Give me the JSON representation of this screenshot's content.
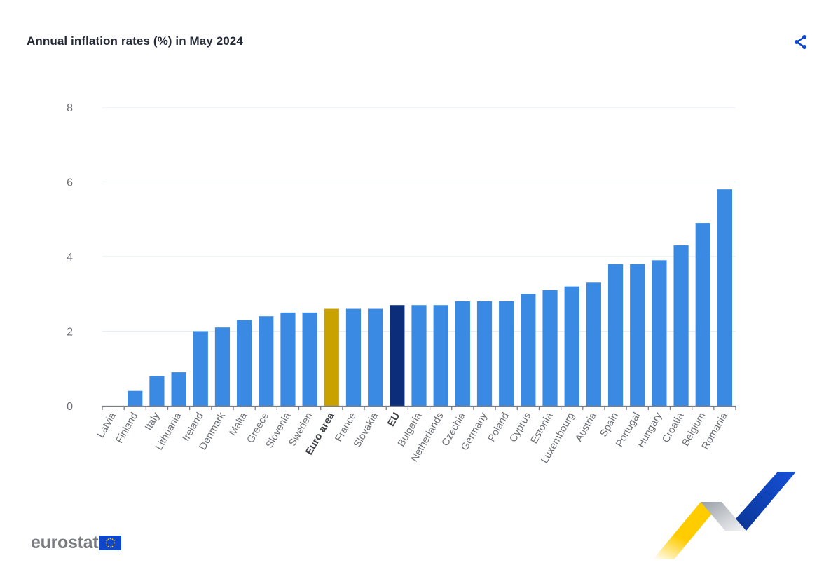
{
  "header": {
    "title": "Annual inflation rates (%) in May 2024",
    "share_icon": "share-icon"
  },
  "footer": {
    "logo_text": "eurostat",
    "flag_icon": "eu-flag-icon",
    "brand_graphic": "eurostat-ribbon-graphic"
  },
  "colors": {
    "bar": "#3a8ae3",
    "euro_area": "#c9a200",
    "eu": "#0b2d7a",
    "grid": "#e8edf5",
    "axis": "#7a7f87",
    "label": "#6b6f76",
    "share": "#0e47cb"
  },
  "chart_data": {
    "type": "bar",
    "title": "Annual inflation rates (%) in May 2024",
    "xlabel": "",
    "ylabel": "",
    "ylim": [
      0,
      8
    ],
    "yticks": [
      0,
      2,
      4,
      6,
      8
    ],
    "grid": true,
    "legend": "none",
    "categories": [
      "Latvia",
      "Finland",
      "Italy",
      "Lithuania",
      "Ireland",
      "Denmark",
      "Malta",
      "Greece",
      "Slovenia",
      "Sweden",
      "Euro area",
      "France",
      "Slovakia",
      "EU",
      "Bulgaria",
      "Netherlands",
      "Czechia",
      "Germany",
      "Poland",
      "Cyprus",
      "Estonia",
      "Luxembourg",
      "Austria",
      "Spain",
      "Portugal",
      "Hungary",
      "Croatia",
      "Belgium",
      "Romania"
    ],
    "values": [
      0.0,
      0.4,
      0.8,
      0.9,
      2.0,
      2.1,
      2.3,
      2.4,
      2.5,
      2.5,
      2.6,
      2.6,
      2.6,
      2.7,
      2.7,
      2.7,
      2.8,
      2.8,
      2.8,
      3.0,
      3.1,
      3.2,
      3.3,
      3.8,
      3.8,
      3.9,
      4.3,
      4.9,
      5.8
    ],
    "highlight": {
      "Euro area": "euro_area",
      "EU": "eu"
    },
    "bold_labels": [
      "Euro area",
      "EU"
    ]
  }
}
